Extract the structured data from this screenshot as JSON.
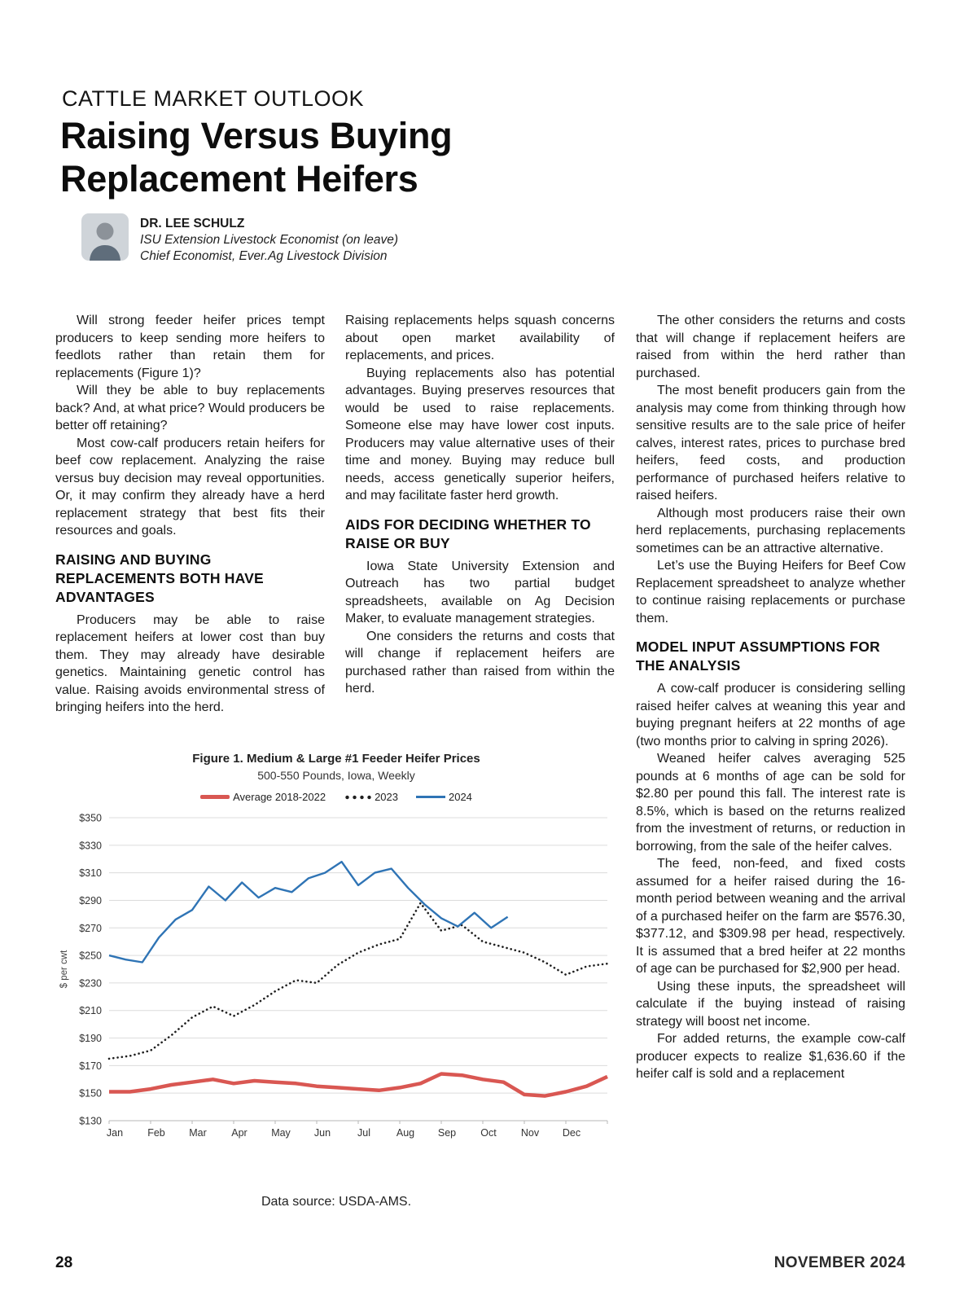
{
  "page": {
    "number": "28",
    "issue": "NOVEMBER 2024"
  },
  "header": {
    "kicker": "CATTLE MARKET OUTLOOK",
    "title_line1": "Raising Versus Buying",
    "title_line2": "Replacement Heifers"
  },
  "byline": {
    "name": "DR. LEE SCHULZ",
    "role1": "ISU Extension Livestock Economist (on leave)",
    "role2": "Chief Economist, Ever.Ag Livestock Division"
  },
  "col1": {
    "p1": "Will strong feeder heifer prices tempt producers to keep sending more heifers to feedlots rather than retain them for replacements (Figure 1)?",
    "p2": "Will they be able to buy replacements back? And, at what price? Would producers be better off retaining?",
    "p3": "Most cow-calf producers retain heifers for beef cow replacement. Analyzing the raise versus buy decision may reveal opportunities. Or, it may confirm they already have a herd replacement strategy that best fits their resources and goals.",
    "heading": "RAISING AND BUYING REPLACEMENTS BOTH HAVE ADVANTAGES",
    "p4": "Producers may be able to raise replacement heifers at lower cost than buy them. They may already have desirable genetics. Maintaining genetic control has value. Raising avoids environmental stress of bringing heifers into the herd."
  },
  "col2": {
    "p1": "Raising replacements helps squash concerns about open market availability of replacements, and prices.",
    "p2": "Buying replacements also has potential advantages. Buying preserves resources that would be used to raise replacements. Someone else may have lower cost inputs. Producers may value alternative uses of their time and money. Buying may reduce bull needs, access genetically superior heifers, and may facilitate faster herd growth.",
    "heading": "AIDS FOR DECIDING WHETHER TO RAISE OR BUY",
    "p3": "Iowa State University Extension and Outreach has two partial budget spreadsheets, available on Ag Decision Maker, to evaluate management strategies.",
    "p4": "One considers the returns and costs that will change if replacement heifers are purchased rather than raised from within the herd."
  },
  "col3": {
    "p1": "The other considers the returns and costs that will change if replacement heifers are raised from within the herd rather than purchased.",
    "p2": "The most benefit producers gain from the analysis may come from thinking through how sensitive results are to the sale price of heifer calves, interest rates, prices to purchase bred heifers, feed costs, and production performance of purchased heifers relative to raised heifers.",
    "p3": "Although most producers raise their own herd replacements, purchasing replacements sometimes can be an attractive alternative.",
    "p4": "Let’s use the Buying Heifers for Beef Cow Replacement spreadsheet to analyze whether to continue raising replacements or purchase them.",
    "heading": "MODEL INPUT ASSUMPTIONS FOR THE ANALYSIS",
    "p5": "A cow-calf producer is considering selling raised heifer calves at weaning this year and buying pregnant heifers at 22 months of age (two months prior to calving in spring 2026).",
    "p6": "Weaned heifer calves averaging 525 pounds at 6 months of age can be sold for $2.80 per pound this fall. The interest rate is 8.5%, which is based on the returns realized from the investment of returns, or reduction in borrowing, from the sale of the heifer calves.",
    "p7": "The feed, non-feed, and fixed costs assumed for a heifer raised during the 16-month period between weaning and the arrival of a purchased heifer on the farm are $576.30, $377.12, and $309.98 per head, respectively. It is assumed that a bred heifer at 22 months of age can be purchased for $2,900 per head.",
    "p8": "Using these inputs, the spreadsheet will calculate if the buying instead of raising strategy will boost net income.",
    "p9": "For added returns, the example cow-calf producer expects to realize $1,636.60 if the heifer calf is sold and a replacement"
  },
  "chart_data": {
    "type": "line",
    "title": "Figure 1. Medium & Large #1 Feeder Heifer Prices",
    "subtitle": "500-550 Pounds, Iowa, Weekly",
    "xlabel": "",
    "ylabel": "$ per cwt",
    "ylim": [
      130,
      350
    ],
    "ytick_step": 20,
    "grid": true,
    "legend_position": "top",
    "x_months": [
      "Jan",
      "Feb",
      "Mar",
      "Apr",
      "May",
      "Jun",
      "Jul",
      "Aug",
      "Sep",
      "Oct",
      "Nov",
      "Dec"
    ],
    "source": "Data source: USDA-AMS.",
    "series": [
      {
        "name": "Average 2018-2022",
        "color": "#d95752",
        "style": "solid-thick",
        "x": [
          0,
          0.5,
          1,
          1.5,
          2,
          2.5,
          3,
          3.5,
          4,
          4.5,
          5,
          5.5,
          6,
          6.5,
          7,
          7.5,
          8,
          8.5,
          9,
          9.5,
          10,
          10.5,
          11,
          11.5,
          12
        ],
        "values": [
          151,
          151,
          153,
          156,
          158,
          160,
          157,
          159,
          158,
          157,
          155,
          154,
          153,
          152,
          154,
          157,
          164,
          163,
          160,
          158,
          149,
          148,
          151,
          155,
          162
        ]
      },
      {
        "name": "2023",
        "color": "#1f1f1f",
        "style": "dotted",
        "x": [
          0,
          0.5,
          1,
          1.5,
          2,
          2.5,
          3,
          3.5,
          4,
          4.5,
          5,
          5.5,
          6,
          6.5,
          7,
          7.5,
          8,
          8.5,
          9,
          9.5,
          10,
          10.5,
          11,
          11.5,
          12
        ],
        "values": [
          175,
          177,
          181,
          192,
          205,
          213,
          206,
          214,
          224,
          232,
          230,
          243,
          252,
          258,
          262,
          288,
          268,
          272,
          260,
          256,
          252,
          245,
          236,
          242,
          244
        ]
      },
      {
        "name": "2024",
        "color": "#2f74b5",
        "style": "solid",
        "x": [
          0,
          0.4,
          0.8,
          1.2,
          1.6,
          2.0,
          2.4,
          2.8,
          3.2,
          3.6,
          4.0,
          4.4,
          4.8,
          5.2,
          5.6,
          6.0,
          6.4,
          6.8,
          7.2,
          7.6,
          8.0,
          8.4,
          8.8,
          9.2,
          9.6
        ],
        "values": [
          250,
          247,
          245,
          263,
          276,
          283,
          300,
          290,
          303,
          292,
          299,
          296,
          306,
          310,
          318,
          301,
          310,
          313,
          299,
          287,
          277,
          271,
          281,
          270,
          278
        ]
      }
    ]
  }
}
